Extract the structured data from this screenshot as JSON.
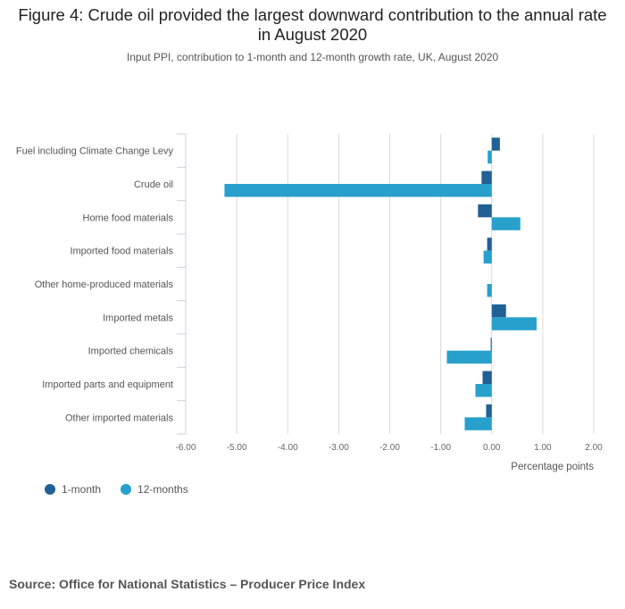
{
  "chart_data": {
    "type": "bar",
    "orientation": "horizontal",
    "title": "Figure 4: Crude oil provided the largest downward contribution to the annual rate in August 2020",
    "subtitle": "Input PPI, contribution to 1-month and 12-month growth rate, UK, August 2020",
    "xlabel": "Percentage points",
    "xlim": [
      -6,
      2
    ],
    "xticks": [
      -6,
      -5,
      -4,
      -3,
      -2,
      -1,
      0,
      1,
      2
    ],
    "xtick_labels": [
      "-6.00",
      "-5.00",
      "-4.00",
      "-3.00",
      "-2.00",
      "-1.00",
      "0.00",
      "1.00",
      "2.00"
    ],
    "categories": [
      "Fuel including Climate Change Levy",
      "Crude oil",
      "Home food materials",
      "Imported food materials",
      "Other home-produced materials",
      "Imported metals",
      "Imported chemicals",
      "Imported parts and equipment",
      "Other imported materials"
    ],
    "series": [
      {
        "name": "1-month",
        "color": "#206095",
        "values": [
          0.16,
          -0.2,
          -0.27,
          -0.09,
          0.0,
          0.28,
          -0.02,
          -0.18,
          -0.11
        ]
      },
      {
        "name": "12-months",
        "color": "#27a0cc",
        "values": [
          -0.08,
          -5.24,
          0.56,
          -0.16,
          -0.09,
          0.88,
          -0.88,
          -0.32,
          -0.53
        ]
      }
    ],
    "legend": "bottom-left",
    "grid": true
  },
  "source": "Source: Office for National Statistics – Producer Price Index"
}
